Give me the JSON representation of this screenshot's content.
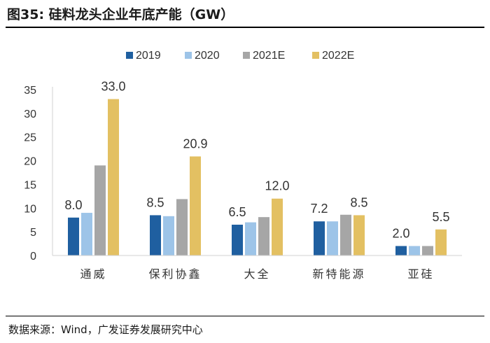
{
  "figure": {
    "label": "图35:",
    "title": "硅料龙头企业年底产能（GW）"
  },
  "source": "数据来源：Wind，广发证券发展研究中心",
  "colors": {
    "2019": "#1f5fa0",
    "2020": "#9dc4e8",
    "2021E": "#a6a6a6",
    "2022E": "#e3c062",
    "axis": "#d0d0d0"
  },
  "chart_data": {
    "type": "bar",
    "title": "硅料龙头企业年底产能（GW）",
    "xlabel": "",
    "ylabel": "",
    "ylim": [
      0,
      35
    ],
    "yticks": [
      0,
      5,
      10,
      15,
      20,
      25,
      30,
      35
    ],
    "grid": false,
    "legend_position": "top",
    "categories": [
      "通威",
      "保利协鑫",
      "大全",
      "新特能源",
      "亚硅"
    ],
    "series": [
      {
        "name": "2019",
        "values": [
          8.0,
          8.5,
          6.5,
          7.2,
          2.0
        ]
      },
      {
        "name": "2020",
        "values": [
          9.0,
          8.3,
          7.0,
          7.2,
          2.0
        ]
      },
      {
        "name": "2021E",
        "values": [
          19.0,
          11.9,
          8.1,
          8.6,
          2.0
        ]
      },
      {
        "name": "2022E",
        "values": [
          33.0,
          20.9,
          12.0,
          8.5,
          5.5
        ]
      }
    ],
    "data_labels": [
      {
        "category": 0,
        "series": 0,
        "text": "8.0"
      },
      {
        "category": 0,
        "series": 3,
        "text": "33.0"
      },
      {
        "category": 1,
        "series": 0,
        "text": "8.5"
      },
      {
        "category": 1,
        "series": 3,
        "text": "20.9"
      },
      {
        "category": 2,
        "series": 0,
        "text": "6.5"
      },
      {
        "category": 2,
        "series": 3,
        "text": "12.0"
      },
      {
        "category": 3,
        "series": 0,
        "text": "7.2"
      },
      {
        "category": 3,
        "series": 3,
        "text": "8.5"
      },
      {
        "category": 4,
        "series": 0,
        "text": "2.0"
      },
      {
        "category": 4,
        "series": 3,
        "text": "5.5"
      }
    ]
  }
}
